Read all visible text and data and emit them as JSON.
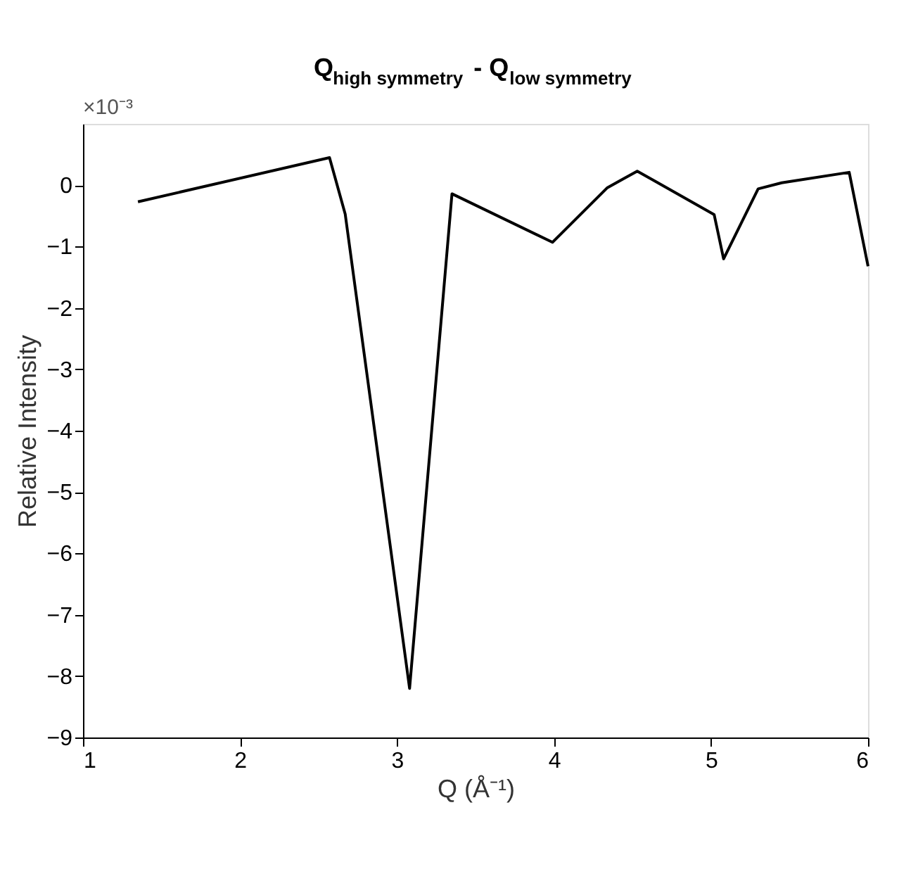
{
  "chart_data": {
    "type": "line",
    "title": "Q$_{high symmetry}$ - Q$_{low symmetry}$",
    "xlabel": "Q (Å⁻¹)",
    "ylabel": "Relative Intensity",
    "x": [
      1.35,
      2.57,
      2.67,
      3.08,
      3.35,
      3.99,
      4.34,
      4.53,
      5.02,
      5.08,
      5.3,
      5.45,
      5.88,
      6.0
    ],
    "series": [
      {
        "color": "#000000",
        "values": [
          -0.27,
          0.45,
          -0.47,
          -8.2,
          -0.14,
          -0.93,
          -0.04,
          0.23,
          -0.48,
          -1.2,
          -0.06,
          0.04,
          0.21,
          -1.32
        ]
      }
    ],
    "xlim": [
      1,
      6
    ],
    "xticks": [
      1,
      2,
      3,
      4,
      5,
      6
    ],
    "ylim": [
      -9,
      1
    ],
    "yticks": [
      -9,
      -8,
      -7,
      -6,
      -5,
      -4,
      -3,
      -2,
      -1,
      0
    ],
    "annotations": [
      "×10⁻³"
    ],
    "grid": false,
    "marker": "none",
    "line_style": "solid"
  }
}
